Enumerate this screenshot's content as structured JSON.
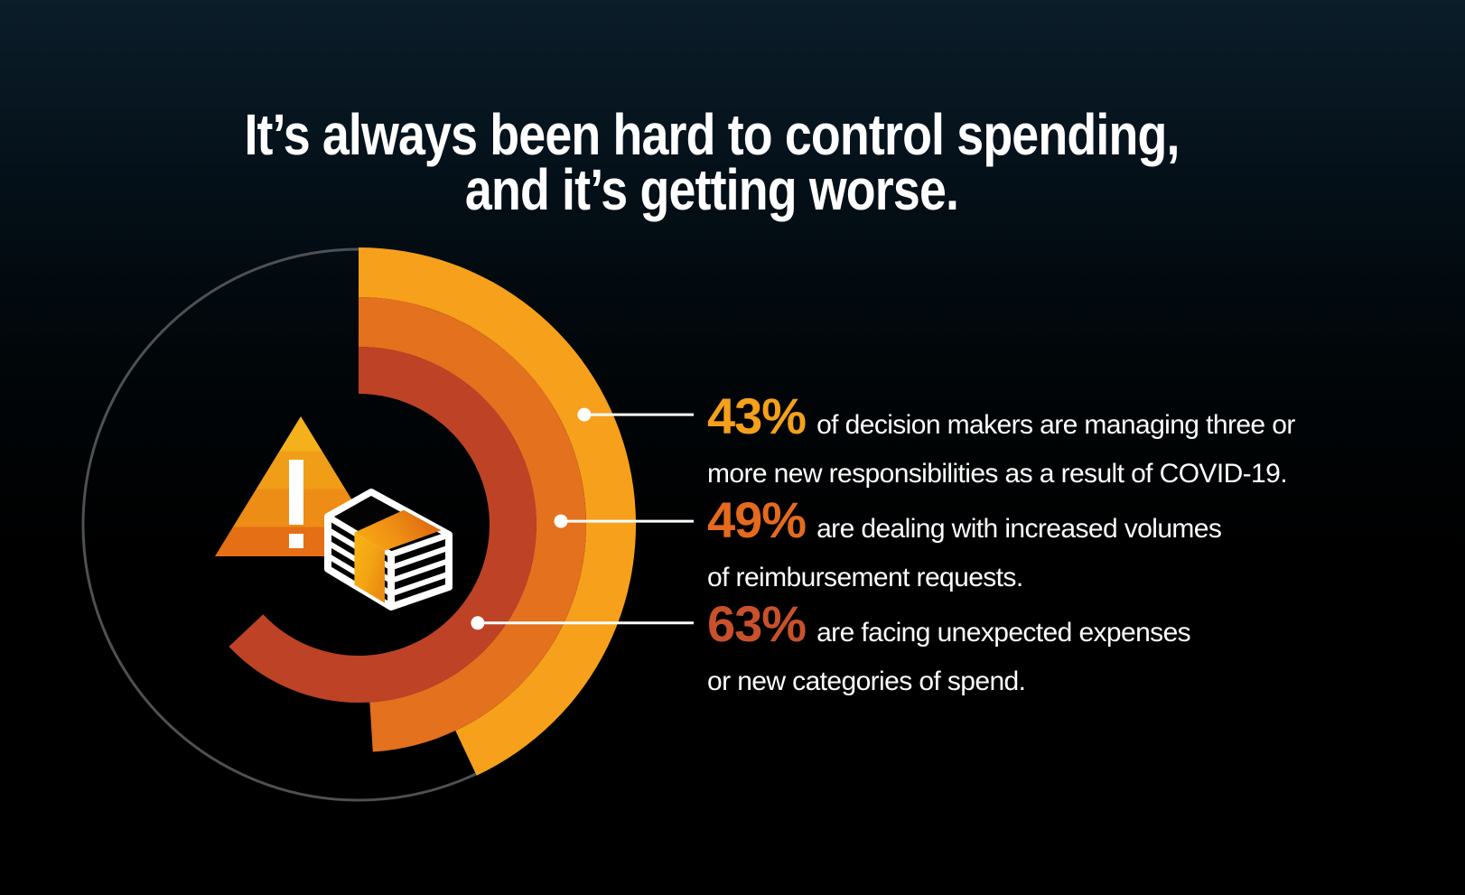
{
  "title": {
    "line1": "It’s always been hard to control spending,",
    "line2": "and it’s getting worse."
  },
  "theme": {
    "background_top": "#0B1D29",
    "background_bottom": "#000000",
    "text_color": "#FFFFFF",
    "leader_color": "#FFFFFF"
  },
  "chart_data": {
    "type": "donut",
    "title": "",
    "unit": "%",
    "max": 100,
    "start_angle_deg": 0,
    "direction": "clockwise",
    "grid": false,
    "legend_position": "right-leader-lines",
    "guide_circle_color": "#4D5154",
    "rings": [
      {
        "position": "outer",
        "value": 43,
        "color": "#F6A01C",
        "label": "43% of decision makers are managing three or more new responsibilities as a result of COVID-19."
      },
      {
        "position": "middle",
        "value": 49,
        "color": "#E3711D",
        "label": "49% are dealing with increased volumes of reimbursement requests."
      },
      {
        "position": "inner",
        "value": 63,
        "color": "#BE4226",
        "label": "63% are facing unexpected expenses or new categories of spend."
      }
    ]
  },
  "stats": [
    {
      "value": "43%",
      "color": "#F5A01B",
      "line1": "of decision makers are managing three or",
      "line2": "more new responsibilities as a result of COVID-19."
    },
    {
      "value": "49%",
      "color": "#E56A1E",
      "line1": "are dealing with increased volumes",
      "line2": "of reimbursement requests."
    },
    {
      "value": "63%",
      "color": "#C8512B",
      "line1": "are facing unexpected expenses",
      "line2": "or new categories of spend."
    }
  ],
  "icons": [
    {
      "name": "warning-triangle-icon",
      "meaning": "alert / spending risk"
    },
    {
      "name": "money-stack-icon",
      "meaning": "stack of banknotes / spend"
    }
  ]
}
